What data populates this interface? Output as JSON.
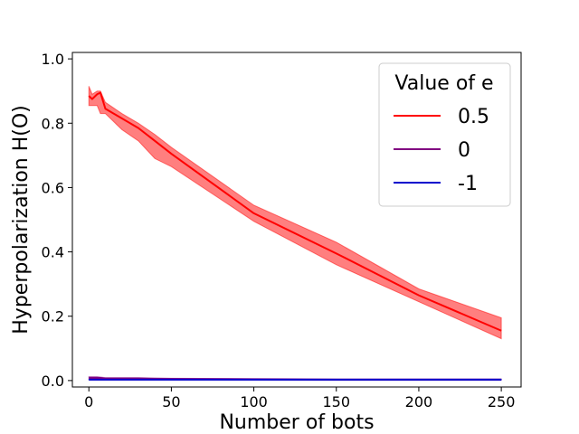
{
  "chart_data": {
    "type": "line",
    "title": "",
    "xlabel": "Number of bots",
    "ylabel": "Hyperpolarization H(O)",
    "xlim": [
      -10,
      262
    ],
    "ylim": [
      -0.02,
      1.02
    ],
    "x_ticks": [
      0,
      50,
      100,
      150,
      200,
      250
    ],
    "x_tick_labels": [
      "0",
      "50",
      "100",
      "150",
      "200",
      "250"
    ],
    "y_ticks": [
      0.0,
      0.2,
      0.4,
      0.6,
      0.8,
      1.0
    ],
    "y_tick_labels": [
      "0.0",
      "0.2",
      "0.4",
      "0.6",
      "0.8",
      "1.0"
    ],
    "grid": false,
    "legend": {
      "title": "Value of e",
      "placement": "top-right"
    },
    "x": [
      0,
      2,
      5,
      7,
      10,
      20,
      30,
      40,
      50,
      100,
      150,
      200,
      250
    ],
    "series": [
      {
        "name": "0.5",
        "color": "#ff0000",
        "band_color": "#ff0000",
        "values": [
          0.885,
          0.875,
          0.89,
          0.895,
          0.845,
          0.815,
          0.785,
          0.745,
          0.705,
          0.52,
          0.395,
          0.265,
          0.155
        ],
        "lower": [
          0.855,
          0.855,
          0.855,
          0.83,
          0.83,
          0.78,
          0.745,
          0.69,
          0.665,
          0.495,
          0.36,
          0.245,
          0.13
        ],
        "upper": [
          0.915,
          0.89,
          0.9,
          0.9,
          0.865,
          0.83,
          0.8,
          0.765,
          0.725,
          0.545,
          0.43,
          0.285,
          0.195
        ]
      },
      {
        "name": "0",
        "color": "#800080",
        "band_color": "#800080",
        "values": [
          0.008,
          0.008,
          0.008,
          0.008,
          0.006,
          0.006,
          0.006,
          0.005,
          0.005,
          0.004,
          0.003,
          0.003,
          0.003
        ],
        "lower": [
          0.005,
          0.005,
          0.005,
          0.005,
          0.004,
          0.004,
          0.004,
          0.003,
          0.003,
          0.002,
          0.002,
          0.002,
          0.002
        ],
        "upper": [
          0.012,
          0.012,
          0.012,
          0.011,
          0.009,
          0.009,
          0.009,
          0.008,
          0.007,
          0.006,
          0.005,
          0.005,
          0.005
        ]
      },
      {
        "name": "-1",
        "color": "#0000cd",
        "band_color": "#0000cd",
        "values": [
          0.003,
          0.003,
          0.003,
          0.003,
          0.003,
          0.003,
          0.003,
          0.003,
          0.003,
          0.003,
          0.003,
          0.003,
          0.003
        ],
        "lower": [
          0.002,
          0.002,
          0.002,
          0.002,
          0.002,
          0.002,
          0.002,
          0.002,
          0.002,
          0.002,
          0.002,
          0.002,
          0.002
        ],
        "upper": [
          0.004,
          0.004,
          0.004,
          0.004,
          0.004,
          0.004,
          0.004,
          0.004,
          0.004,
          0.004,
          0.004,
          0.004,
          0.004
        ]
      }
    ]
  }
}
